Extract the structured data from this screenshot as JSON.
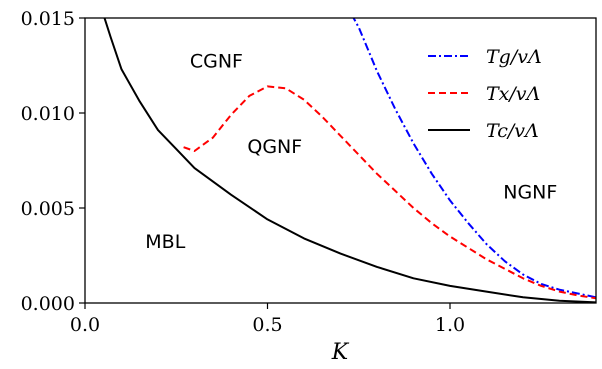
{
  "chart_data": {
    "type": "line",
    "title": "",
    "xlabel": "K",
    "ylabel": "",
    "xlim": [
      0.0,
      1.4
    ],
    "ylim": [
      0.0,
      0.015
    ],
    "xticks": [
      0.0,
      0.5,
      1.0
    ],
    "xtick_labels": [
      "0.0",
      "0.5",
      "1.0"
    ],
    "yticks": [
      0.0,
      0.005,
      0.01,
      0.015
    ],
    "ytick_labels": [
      "0.000",
      "0.005",
      "0.010",
      "0.015"
    ],
    "grid": false,
    "legend_position": "top-right",
    "series": [
      {
        "name": "T_g/vΛ",
        "legend_label": "Tg/vΛ",
        "color": "#0000ff",
        "style": "dashdot",
        "x": [
          0.73,
          0.75,
          0.8,
          0.85,
          0.9,
          0.95,
          1.0,
          1.05,
          1.1,
          1.15,
          1.2,
          1.25,
          1.3,
          1.35,
          1.4
        ],
        "y": [
          0.0152,
          0.0145,
          0.0122,
          0.0102,
          0.0084,
          0.0068,
          0.0054,
          0.0042,
          0.0031,
          0.0022,
          0.0015,
          0.001,
          0.0007,
          0.0005,
          0.0003
        ]
      },
      {
        "name": "T_x/vΛ",
        "legend_label": "Tx/vΛ",
        "color": "#ff0000",
        "style": "dashed",
        "x": [
          0.27,
          0.3,
          0.35,
          0.4,
          0.45,
          0.5,
          0.55,
          0.6,
          0.65,
          0.7,
          0.75,
          0.8,
          0.85,
          0.9,
          0.95,
          1.0,
          1.05,
          1.1,
          1.15,
          1.2,
          1.25,
          1.3,
          1.35,
          1.4
        ],
        "y": [
          0.0082,
          0.008,
          0.0087,
          0.0099,
          0.0109,
          0.0114,
          0.0113,
          0.0107,
          0.0098,
          0.0088,
          0.0078,
          0.0068,
          0.0059,
          0.005,
          0.0042,
          0.0035,
          0.0029,
          0.0023,
          0.0018,
          0.0013,
          0.0009,
          0.0006,
          0.0004,
          0.00025
        ]
      },
      {
        "name": "T_c/vΛ",
        "legend_label": "Tc/vΛ",
        "color": "#000000",
        "style": "solid",
        "x": [
          0.05,
          0.07,
          0.1,
          0.15,
          0.2,
          0.25,
          0.3,
          0.4,
          0.5,
          0.6,
          0.7,
          0.8,
          0.9,
          1.0,
          1.1,
          1.2,
          1.3,
          1.4
        ],
        "y": [
          0.0152,
          0.014,
          0.0123,
          0.0106,
          0.0091,
          0.0081,
          0.0071,
          0.0057,
          0.0044,
          0.0034,
          0.0026,
          0.0019,
          0.0013,
          0.0009,
          0.0006,
          0.0003,
          0.00012,
          3e-05
        ]
      }
    ],
    "region_labels": [
      {
        "text": "CGNF",
        "x": 0.36,
        "y": 0.0124
      },
      {
        "text": "QGNF",
        "x": 0.52,
        "y": 0.0079
      },
      {
        "text": "NGNF",
        "x": 1.22,
        "y": 0.0055
      },
      {
        "text": "MBL",
        "x": 0.22,
        "y": 0.0029
      }
    ]
  }
}
